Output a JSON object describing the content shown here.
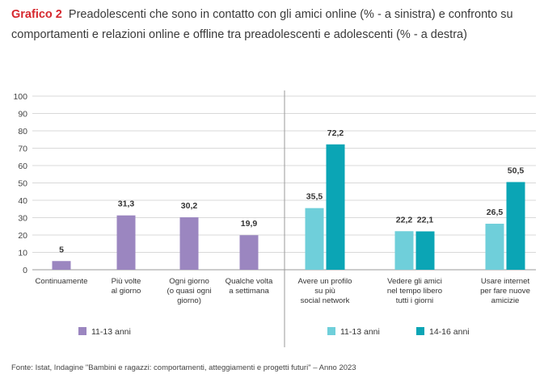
{
  "title": {
    "label": "Grafico 2",
    "text": "Preadolescenti che sono in contatto con gli amici online (% - a sinistra) e confronto su comportamenti e relazioni online e offline tra preadolescenti e adolescenti (% - a destra)"
  },
  "source": "Fonte: Istat, Indagine \"Bambini e ragazzi: comportamenti, atteggiamenti e progetti futuri\" – Anno 2023",
  "colors": {
    "purple": "#9b86c0",
    "light_teal": "#6fcfda",
    "dark_teal": "#0ba5b5",
    "grid": "#d9d9d9",
    "axis": "#9a9a9a"
  },
  "chart_data": [
    {
      "type": "bar",
      "categories": [
        [
          "Continuamente"
        ],
        [
          "Più volte",
          "al giorno"
        ],
        [
          "Ogni giorno",
          "(o quasi ogni",
          "giorno)"
        ],
        [
          "Qualche volta",
          "a settimana"
        ]
      ],
      "series": [
        {
          "name": "11-13 anni",
          "values": [
            5,
            31.3,
            30.2,
            19.9
          ],
          "labels": [
            "5",
            "31,3",
            "30,2",
            "19,9"
          ],
          "color": "#9b86c0"
        }
      ],
      "ylim": [
        0,
        100
      ],
      "yticks": [
        0,
        10,
        20,
        30,
        40,
        50,
        60,
        70,
        80,
        90,
        100
      ],
      "grid": true,
      "legend": "bottom-left"
    },
    {
      "type": "bar",
      "categories": [
        [
          "Avere un profilo",
          "su più",
          "social network"
        ],
        [
          "Vedere gli amici",
          "nel tempo libero",
          "tutti i giorni"
        ],
        [
          "Usare internet",
          "per fare nuove",
          "amicizie"
        ]
      ],
      "series": [
        {
          "name": "11-13 anni",
          "values": [
            35.5,
            22.2,
            26.5
          ],
          "labels": [
            "35,5",
            "22,2",
            "26,5"
          ],
          "color": "#6fcfda"
        },
        {
          "name": "14-16 anni",
          "values": [
            72.2,
            22.1,
            50.5
          ],
          "labels": [
            "72,2",
            "22,1",
            "50,5"
          ],
          "color": "#0ba5b5"
        }
      ],
      "ylim": [
        0,
        100
      ],
      "grid": true,
      "legend": "bottom-right"
    }
  ]
}
